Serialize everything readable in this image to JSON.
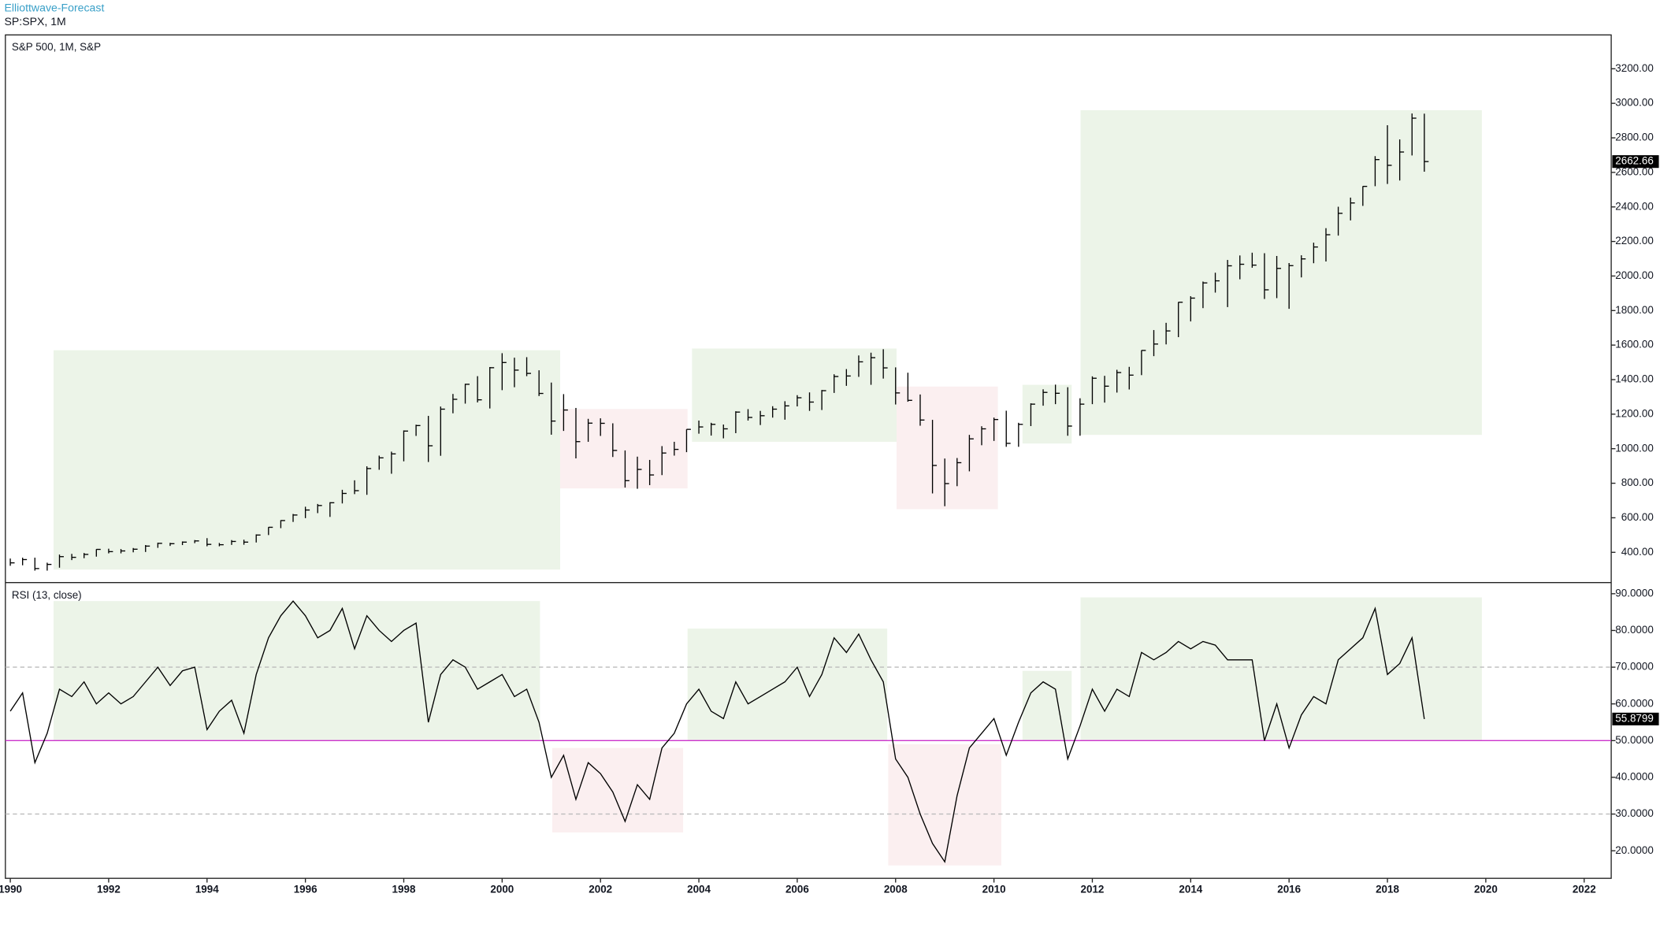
{
  "header": {
    "brand": "Elliottwave-Forecast",
    "symbol": "SP:SPX, 1M"
  },
  "chart_data": [
    {
      "type": "ohlc",
      "title": "S&P 500, 1M, S&P",
      "color": "#000000",
      "x": [
        1990,
        1990.25,
        1990.5,
        1990.75,
        1991,
        1991.25,
        1991.5,
        1991.75,
        1992,
        1992.25,
        1992.5,
        1992.75,
        1993,
        1993.25,
        1993.5,
        1993.75,
        1994,
        1994.25,
        1994.5,
        1994.75,
        1995,
        1995.25,
        1995.5,
        1995.75,
        1996,
        1996.25,
        1996.5,
        1996.75,
        1997,
        1997.25,
        1997.5,
        1997.75,
        1998,
        1998.25,
        1998.5,
        1998.75,
        1999,
        1999.25,
        1999.5,
        1999.75,
        2000,
        2000.25,
        2000.5,
        2000.75,
        2001,
        2001.25,
        2001.5,
        2001.75,
        2002,
        2002.25,
        2002.5,
        2002.75,
        2003,
        2003.25,
        2003.5,
        2003.75,
        2004,
        2004.25,
        2004.5,
        2004.75,
        2005,
        2005.25,
        2005.5,
        2005.75,
        2006,
        2006.25,
        2006.5,
        2006.75,
        2007,
        2007.25,
        2007.5,
        2007.75,
        2008,
        2008.25,
        2008.5,
        2008.75,
        2009,
        2009.25,
        2009.5,
        2009.75,
        2010,
        2010.25,
        2010.5,
        2010.75,
        2011,
        2011.25,
        2011.5,
        2011.75,
        2012,
        2012.25,
        2012.5,
        2012.75,
        2013,
        2013.25,
        2013.5,
        2013.75,
        2014,
        2014.25,
        2014.5,
        2014.75,
        2015,
        2015.25,
        2015.5,
        2015.75,
        2016,
        2016.25,
        2016.5,
        2016.75,
        2017,
        2017.25,
        2017.5,
        2017.75,
        2018,
        2018.25,
        2018.5,
        2018.75
      ],
      "high": [
        364,
        369,
        369,
        340,
        387,
        391,
        396,
        418,
        421,
        419,
        425,
        442,
        456,
        455,
        463,
        471,
        482,
        454,
        471,
        473,
        504,
        546,
        586,
        622,
        664,
        680,
        690,
        762,
        817,
        898,
        960,
        983,
        1106,
        1139,
        1190,
        1244,
        1317,
        1376,
        1420,
        1473,
        1553,
        1527,
        1530,
        1454,
        1383,
        1316,
        1236,
        1173,
        1176,
        1147,
        990,
        954,
        935,
        1015,
        1040,
        1112,
        1163,
        1150,
        1140,
        1217,
        1229,
        1219,
        1246,
        1275,
        1310,
        1326,
        1340,
        1431,
        1461,
        1540,
        1556,
        1576,
        1471,
        1440,
        1314,
        1167,
        943,
        946,
        1080,
        1130,
        1180,
        1220,
        1150,
        1263,
        1344,
        1371,
        1356,
        1292,
        1419,
        1422,
        1457,
        1474,
        1570,
        1687,
        1729,
        1849,
        1883,
        1968,
        2019,
        2093,
        2119,
        2135,
        2132,
        2116,
        2075,
        2120,
        2193,
        2277,
        2401,
        2454,
        2520,
        2694,
        2873,
        2791,
        2941,
        2940
      ],
      "low": [
        322,
        325,
        294,
        294,
        311,
        355,
        366,
        375,
        394,
        394,
        400,
        402,
        426,
        437,
        442,
        453,
        435,
        435,
        443,
        444,
        457,
        500,
        540,
        576,
        598,
        627,
        605,
        683,
        737,
        733,
        878,
        855,
        927,
        1074,
        923,
        959,
        1205,
        1261,
        1268,
        1233,
        1339,
        1356,
        1420,
        1305,
        1081,
        1103,
        944,
        1040,
        1074,
        952,
        775,
        768,
        789,
        847,
        960,
        980,
        1087,
        1076,
        1060,
        1090,
        1163,
        1137,
        1180,
        1168,
        1245,
        1219,
        1224,
        1323,
        1364,
        1416,
        1370,
        1406,
        1256,
        1272,
        1133,
        741,
        667,
        783,
        869,
        1020,
        1045,
        1011,
        1011,
        1131,
        1249,
        1258,
        1075,
        1075,
        1258,
        1267,
        1325,
        1343,
        1426,
        1536,
        1604,
        1646,
        1737,
        1814,
        1904,
        1820,
        1981,
        2048,
        1867,
        1872,
        1810,
        1992,
        2074,
        2084,
        2234,
        2322,
        2406,
        2520,
        2533,
        2553,
        2698,
        2604
      ],
      "close": [
        339,
        358,
        306,
        330,
        375,
        371,
        388,
        417,
        404,
        408,
        418,
        436,
        452,
        450,
        459,
        466,
        446,
        444,
        463,
        459,
        500,
        545,
        584,
        616,
        645,
        671,
        687,
        741,
        757,
        885,
        947,
        970,
        1102,
        1134,
        1017,
        1229,
        1286,
        1373,
        1283,
        1469,
        1499,
        1455,
        1436,
        1320,
        1160,
        1224,
        1041,
        1148,
        1147,
        990,
        815,
        880,
        848,
        975,
        996,
        1112,
        1126,
        1141,
        1115,
        1212,
        1181,
        1191,
        1229,
        1248,
        1295,
        1270,
        1336,
        1418,
        1421,
        1503,
        1527,
        1468,
        1323,
        1280,
        1166,
        903,
        798,
        919,
        1057,
        1115,
        1169,
        1031,
        1141,
        1258,
        1326,
        1321,
        1131,
        1258,
        1408,
        1362,
        1441,
        1426,
        1569,
        1606,
        1682,
        1848,
        1872,
        1960,
        1972,
        2059,
        2068,
        2063,
        1920,
        2044,
        2060,
        2099,
        2168,
        2239,
        2363,
        2423,
        2519,
        2674,
        2641,
        2718,
        2914,
        2662.66
      ],
      "xlim": [
        1989.9,
        2022.55
      ],
      "ylim": [
        228,
        3396
      ],
      "yticks": [
        {
          "value": 400,
          "label": "400.00"
        },
        {
          "value": 600,
          "label": "600.00"
        },
        {
          "value": 800,
          "label": "800.00"
        },
        {
          "value": 1000,
          "label": "1000.00"
        },
        {
          "value": 1200,
          "label": "1200.00"
        },
        {
          "value": 1400,
          "label": "1400.00"
        },
        {
          "value": 1600,
          "label": "1600.00"
        },
        {
          "value": 1800,
          "label": "1800.00"
        },
        {
          "value": 2000,
          "label": "2000.00"
        },
        {
          "value": 2200,
          "label": "2200.00"
        },
        {
          "value": 2400,
          "label": "2400.00"
        },
        {
          "value": 2600,
          "label": "2600.00"
        },
        {
          "value": 2800,
          "label": "2800.00"
        },
        {
          "value": 3000,
          "label": "3000.00"
        },
        {
          "value": 3200,
          "label": "3200.00"
        }
      ],
      "zones": [
        {
          "x": [
            1990.88,
            2001.18
          ],
          "y": [
            300,
            1570
          ],
          "color": "#ecf4e8"
        },
        {
          "x": [
            2001.18,
            2003.77
          ],
          "y": [
            770,
            1230
          ],
          "color": "#fbeff0"
        },
        {
          "x": [
            2003.86,
            2008.02
          ],
          "y": [
            1040,
            1580
          ],
          "color": "#ecf4e8"
        },
        {
          "x": [
            2008.02,
            2010.08
          ],
          "y": [
            650,
            1360
          ],
          "color": "#fbeff0"
        },
        {
          "x": [
            2010.58,
            2011.58
          ],
          "y": [
            1030,
            1370
          ],
          "color": "#ecf4e8"
        },
        {
          "x": [
            2011.76,
            2019.92
          ],
          "y": [
            1080,
            2960
          ],
          "color": "#ecf4e8"
        }
      ]
    },
    {
      "type": "line",
      "title": "RSI (13, close)",
      "color": "#000000",
      "x": [
        1990,
        1990.25,
        1990.5,
        1990.75,
        1991,
        1991.25,
        1991.5,
        1991.75,
        1992,
        1992.25,
        1992.5,
        1992.75,
        1993,
        1993.25,
        1993.5,
        1993.75,
        1994,
        1994.25,
        1994.5,
        1994.75,
        1995,
        1995.25,
        1995.5,
        1995.75,
        1996,
        1996.25,
        1996.5,
        1996.75,
        1997,
        1997.25,
        1997.5,
        1997.75,
        1998,
        1998.25,
        1998.5,
        1998.75,
        1999,
        1999.25,
        1999.5,
        1999.75,
        2000,
        2000.25,
        2000.5,
        2000.75,
        2001,
        2001.25,
        2001.5,
        2001.75,
        2002,
        2002.25,
        2002.5,
        2002.75,
        2003,
        2003.25,
        2003.5,
        2003.75,
        2004,
        2004.25,
        2004.5,
        2004.75,
        2005,
        2005.25,
        2005.5,
        2005.75,
        2006,
        2006.25,
        2006.5,
        2006.75,
        2007,
        2007.25,
        2007.5,
        2007.75,
        2008,
        2008.25,
        2008.5,
        2008.75,
        2009,
        2009.25,
        2009.5,
        2009.75,
        2010,
        2010.25,
        2010.5,
        2010.75,
        2011,
        2011.25,
        2011.5,
        2011.75,
        2012,
        2012.25,
        2012.5,
        2012.75,
        2013,
        2013.25,
        2013.5,
        2013.75,
        2014,
        2014.25,
        2014.5,
        2014.75,
        2015,
        2015.25,
        2015.5,
        2015.75,
        2016,
        2016.25,
        2016.5,
        2016.75,
        2017,
        2017.25,
        2017.5,
        2017.75,
        2018,
        2018.25,
        2018.5,
        2018.75
      ],
      "values": [
        58,
        63,
        44,
        52,
        64,
        62,
        66,
        60,
        63,
        60,
        62,
        66,
        70,
        65,
        69,
        70,
        53,
        58,
        61,
        52,
        68,
        78,
        84,
        88,
        84,
        78,
        80,
        86,
        75,
        84,
        80,
        77,
        80,
        82,
        55,
        68,
        72,
        70,
        64,
        66,
        68,
        62,
        64,
        55,
        40,
        46,
        34,
        44,
        41,
        36,
        28,
        38,
        34,
        48,
        52,
        60,
        64,
        58,
        56,
        66,
        60,
        62,
        64,
        66,
        70,
        62,
        68,
        78,
        74,
        79,
        72,
        66,
        45,
        40,
        30,
        22,
        17,
        35,
        48,
        52,
        56,
        46,
        55,
        63,
        66,
        64,
        45,
        54,
        64,
        58,
        64,
        62,
        74,
        72,
        74,
        77,
        75,
        77,
        76,
        72,
        72,
        72,
        50,
        60,
        48,
        57,
        62,
        60,
        72,
        75,
        78,
        86,
        68,
        71,
        78,
        55.8799
      ],
      "xlim": [
        1989.9,
        2022.55
      ],
      "ylim": [
        12.5,
        92.9
      ],
      "xticks": [
        1990,
        1992,
        1994,
        1996,
        1998,
        2000,
        2002,
        2004,
        2006,
        2008,
        2010,
        2012,
        2014,
        2016,
        2018,
        2020,
        2022
      ],
      "yticks": [
        {
          "value": 20,
          "label": "20.0000"
        },
        {
          "value": 30,
          "label": "30.0000"
        },
        {
          "value": 40,
          "label": "40.0000"
        },
        {
          "value": 50,
          "label": "50.0000"
        },
        {
          "value": 60,
          "label": "60.0000"
        },
        {
          "value": 70,
          "label": "70.0000"
        },
        {
          "value": 80,
          "label": "80.0000"
        },
        {
          "value": 90,
          "label": "90.0000"
        }
      ],
      "levels": [
        {
          "value": 70,
          "color": "#bbbbbb",
          "dashed": true
        },
        {
          "value": 50,
          "color": "#cc33cc",
          "dashed": false
        },
        {
          "value": 30,
          "color": "#bbbbbb",
          "dashed": true
        }
      ],
      "zones": [
        {
          "x": [
            1990.88,
            2000.77
          ],
          "y": [
            50,
            88
          ],
          "color": "#ecf4e8"
        },
        {
          "x": [
            2001.02,
            2003.68
          ],
          "y": [
            25,
            48
          ],
          "color": "#fbeff0"
        },
        {
          "x": [
            2003.77,
            2007.83
          ],
          "y": [
            50,
            80.5
          ],
          "color": "#ecf4e8"
        },
        {
          "x": [
            2007.85,
            2010.15
          ],
          "y": [
            16,
            49
          ],
          "color": "#fbeff0"
        },
        {
          "x": [
            2010.58,
            2011.58
          ],
          "y": [
            50,
            69
          ],
          "color": "#ecf4e8"
        },
        {
          "x": [
            2011.76,
            2019.92
          ],
          "y": [
            50,
            89
          ],
          "color": "#ecf4e8"
        }
      ]
    }
  ]
}
